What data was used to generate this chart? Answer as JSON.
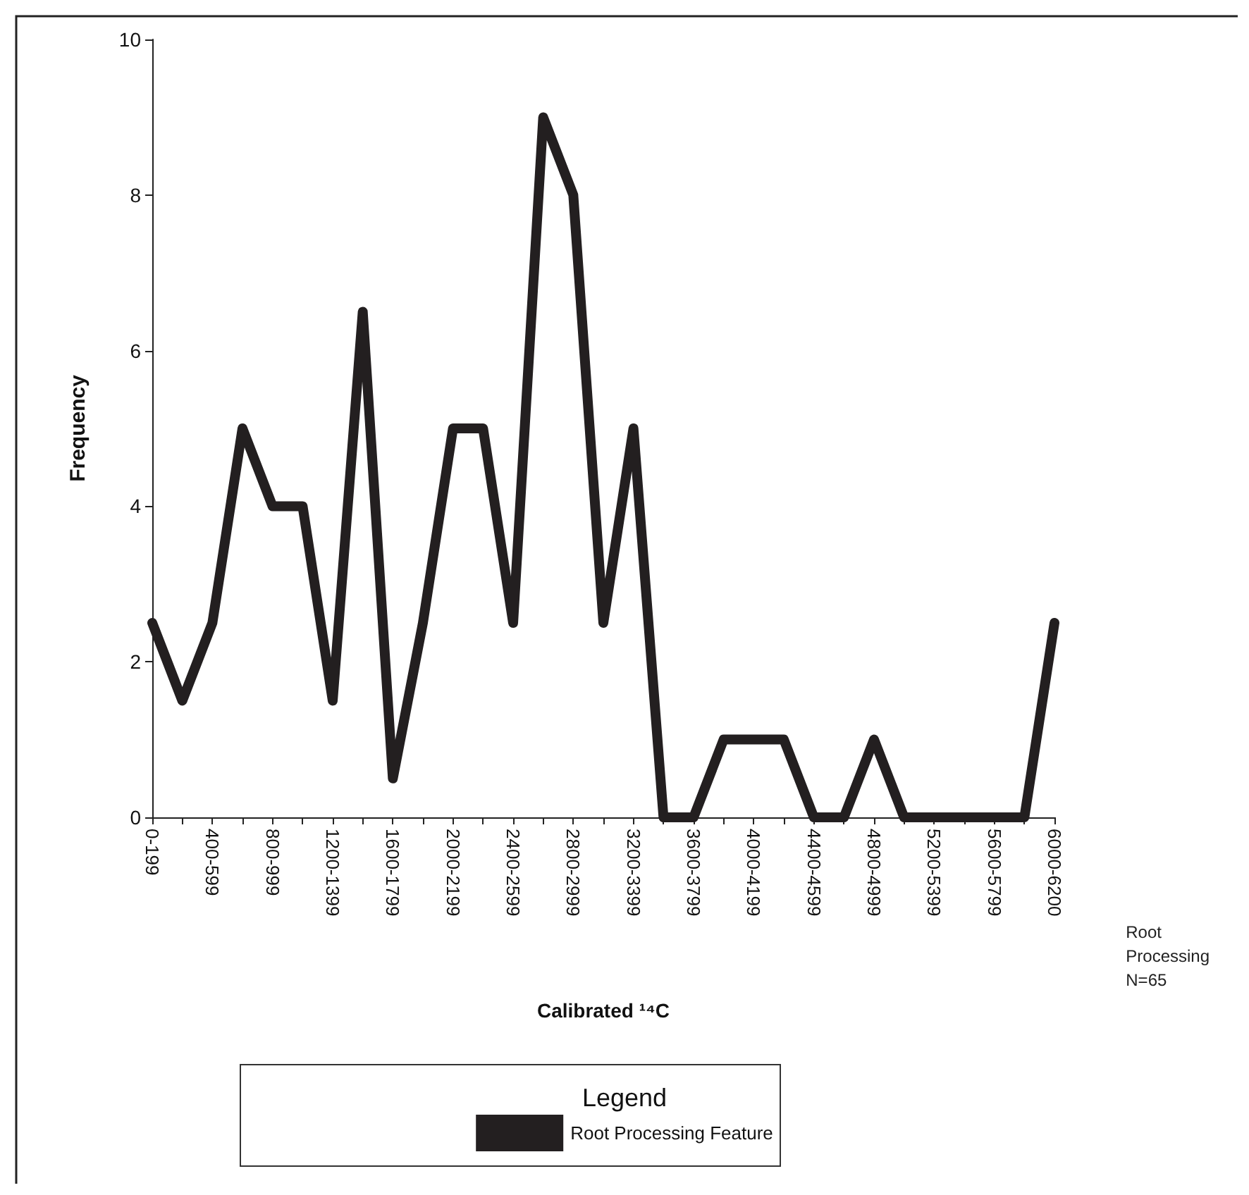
{
  "chart_data": {
    "type": "line",
    "xlabel": "Calibrated ¹⁴C",
    "ylabel": "Frequency",
    "legend_title": "Legend",
    "legend": "bottom",
    "grid": false,
    "marker": "none",
    "line_style": "solid",
    "categories": [
      "0-199",
      null,
      "400-599",
      null,
      "800-999",
      null,
      "1200-1399",
      null,
      "1600-1799",
      null,
      "2000-2199",
      null,
      "2400-2599",
      null,
      "2800-2999",
      null,
      "3200-3399",
      null,
      "3600-3799",
      null,
      "4000-4199",
      null,
      "4400-4599",
      null,
      "4800-4999",
      null,
      "5200-5399",
      null,
      "5600-5799",
      null,
      "6000-6200"
    ],
    "series": [
      {
        "name": "Root Processing Feature",
        "color": "#231f20",
        "values": [
          2.5,
          1.5,
          2.5,
          5,
          4,
          4,
          1.5,
          6.5,
          0.5,
          2.5,
          5,
          5,
          2.5,
          9,
          8,
          2.5,
          5,
          0,
          0,
          1,
          1,
          1,
          0,
          0,
          1,
          0,
          0,
          0,
          0,
          0,
          2.5
        ]
      }
    ],
    "ylim": [
      0,
      10
    ],
    "yticks": [
      0,
      2,
      4,
      6,
      8,
      10
    ],
    "annotations": [
      "Root Processing N=65"
    ]
  }
}
